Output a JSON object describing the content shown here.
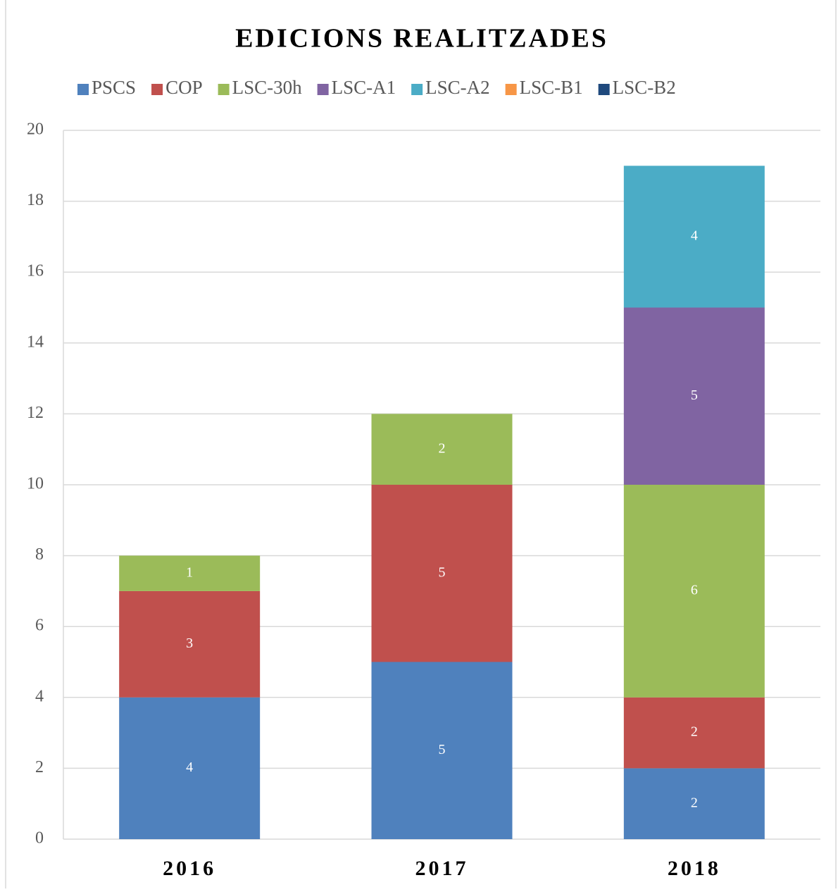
{
  "chart_data": {
    "type": "stacked_bar",
    "title": "EDICIONS REALITZADES",
    "categories": [
      "2016",
      "2017",
      "2018"
    ],
    "series": [
      {
        "name": "PSCS",
        "color": "#4f81bd",
        "values": [
          4,
          5,
          2
        ]
      },
      {
        "name": "COP",
        "color": "#c0504d",
        "values": [
          3,
          5,
          2
        ]
      },
      {
        "name": "LSC-30h",
        "color": "#9bbb59",
        "values": [
          1,
          2,
          6
        ]
      },
      {
        "name": "LSC-A1",
        "color": "#8064a2",
        "values": [
          0,
          0,
          5
        ]
      },
      {
        "name": "LSC-A2",
        "color": "#4bacc6",
        "values": [
          0,
          0,
          4
        ]
      },
      {
        "name": "LSC-B1",
        "color": "#f79646",
        "values": [
          0,
          0,
          0
        ]
      },
      {
        "name": "LSC-B2",
        "color": "#1f497d",
        "values": [
          0,
          0,
          0
        ]
      }
    ],
    "ylim": [
      0,
      20
    ],
    "yticks": [
      0,
      2,
      4,
      6,
      8,
      10,
      12,
      14,
      16,
      18,
      20
    ],
    "grid": true,
    "legend": "top"
  }
}
